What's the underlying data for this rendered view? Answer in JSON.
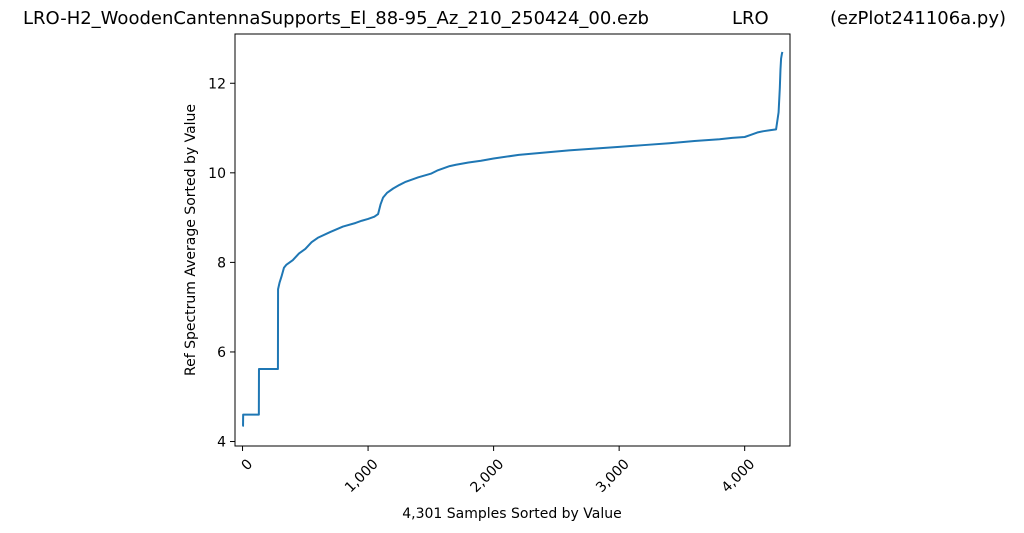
{
  "header": {
    "filename": "LRO-H2_WoodenCantennaSupports_El_88-95_Az_210_250424_00.ezb",
    "telescope": "LRO",
    "program": "(ezPlot241106a.py)"
  },
  "chart_data": {
    "type": "line",
    "xlabel": "4,301 Samples Sorted by Value",
    "ylabel": "Ref Spectrum Average Sorted by Value",
    "xlim": [
      -60,
      4361
    ],
    "ylim": [
      3.9,
      13.1
    ],
    "xticks": [
      0,
      1000,
      2000,
      3000,
      4000
    ],
    "xtick_labels": [
      "0",
      "1,000",
      "2,000",
      "3,000",
      "4,000"
    ],
    "yticks": [
      4,
      6,
      8,
      10,
      12
    ],
    "ytick_labels": [
      "4",
      "6",
      "8",
      "10",
      "12"
    ],
    "grid": false,
    "line_color": "#1f77b4",
    "series": [
      {
        "x": [
          0,
          4,
          5,
          130,
          131,
          282,
          283,
          295,
          310,
          330,
          350,
          400,
          450,
          500,
          550,
          600,
          700,
          800,
          900,
          950,
          1000,
          1050,
          1080,
          1100,
          1120,
          1150,
          1200,
          1250,
          1300,
          1400,
          1500,
          1550,
          1600,
          1650,
          1700,
          1800,
          1900,
          2000,
          2200,
          2400,
          2600,
          2800,
          3000,
          3200,
          3400,
          3600,
          3800,
          3900,
          4000,
          4050,
          4100,
          4150,
          4200,
          4250,
          4270,
          4280,
          4285,
          4290,
          4293,
          4296,
          4300
        ],
        "y": [
          4.35,
          4.35,
          4.6,
          4.6,
          5.62,
          5.62,
          7.4,
          7.55,
          7.68,
          7.88,
          7.95,
          8.05,
          8.2,
          8.3,
          8.45,
          8.55,
          8.68,
          8.8,
          8.88,
          8.93,
          8.97,
          9.02,
          9.08,
          9.3,
          9.45,
          9.55,
          9.65,
          9.73,
          9.8,
          9.9,
          9.98,
          10.05,
          10.1,
          10.15,
          10.18,
          10.23,
          10.27,
          10.32,
          10.4,
          10.45,
          10.5,
          10.54,
          10.58,
          10.62,
          10.66,
          10.71,
          10.75,
          10.78,
          10.8,
          10.85,
          10.9,
          10.93,
          10.95,
          10.97,
          11.35,
          11.9,
          12.3,
          12.55,
          12.6,
          12.65,
          12.7
        ]
      }
    ]
  }
}
